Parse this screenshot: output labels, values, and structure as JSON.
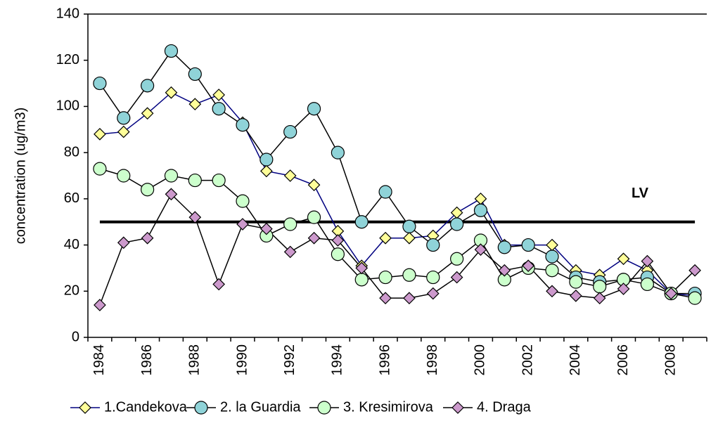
{
  "chart_data": {
    "type": "line",
    "y_label": "concentration (ug/m3)",
    "categories": [
      "1984",
      null,
      "1986",
      null,
      "1988",
      null,
      "1990",
      null,
      "1992",
      null,
      "1994",
      null,
      "1996",
      null,
      "1998",
      null,
      "2000",
      null,
      "2002",
      null,
      "2004",
      null,
      "2006",
      null,
      "2008",
      null
    ],
    "ylim": [
      0,
      140
    ],
    "yticks": [
      0,
      20,
      40,
      60,
      80,
      100,
      120,
      140
    ],
    "reference_line": {
      "value": 50,
      "label": "LV",
      "color": "#000000"
    },
    "series": [
      {
        "name": "1.Candekova",
        "color": "#000080",
        "marker": "diamond",
        "marker_color": "#ffff99",
        "values": [
          88,
          89,
          97,
          106,
          101,
          105,
          93,
          72,
          70,
          66,
          46,
          31,
          43,
          43,
          44,
          54,
          60,
          40,
          40,
          40,
          29,
          27,
          34,
          29,
          19,
          18
        ]
      },
      {
        "name": "2. la Guardia",
        "color": "#000000",
        "marker": "circle",
        "marker_color": "#8fd3d8",
        "values": [
          110,
          95,
          109,
          124,
          114,
          99,
          92,
          77,
          89,
          99,
          80,
          50,
          63,
          48,
          40,
          49,
          55,
          39,
          40,
          35,
          26,
          24,
          25,
          26,
          19,
          19
        ]
      },
      {
        "name": "3. Kresimirova",
        "color": "#000000",
        "marker": "circle",
        "marker_color": "#ccffcc",
        "values": [
          73,
          70,
          64,
          70,
          68,
          68,
          59,
          44,
          49,
          52,
          36,
          25,
          26,
          27,
          26,
          34,
          42,
          25,
          30,
          29,
          24,
          22,
          25,
          23,
          19,
          17
        ]
      },
      {
        "name": "4. Draga",
        "color": "#000000",
        "marker": "diamond",
        "marker_color": "#cc99cc",
        "values": [
          14,
          41,
          43,
          62,
          52,
          23,
          49,
          47,
          37,
          43,
          42,
          30,
          17,
          17,
          19,
          26,
          38,
          29,
          31,
          20,
          18,
          17,
          21,
          33,
          19,
          29
        ]
      }
    ]
  }
}
